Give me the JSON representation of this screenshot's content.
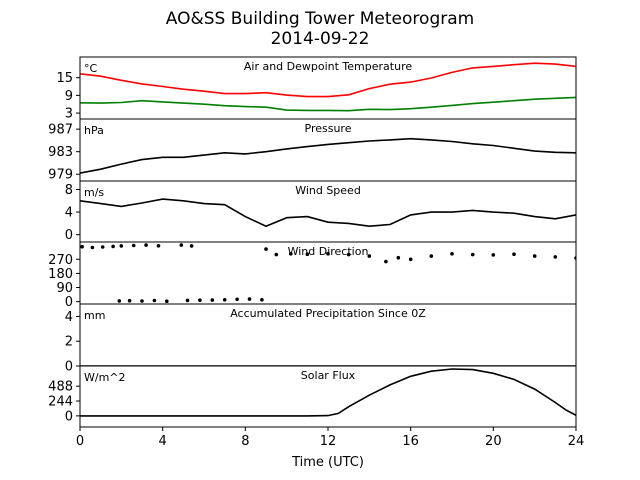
{
  "figure": {
    "title": "AO&SS Building Tower Meteorogram",
    "date": "2014-09-22",
    "xlabel": "Time (UTC)",
    "xticks": [
      0,
      4,
      8,
      12,
      16,
      20,
      24
    ],
    "xlim": [
      0,
      24
    ]
  },
  "colors": {
    "temperature": "#ff0000",
    "dewpoint": "#008000",
    "black": "#000000"
  },
  "chart_data": [
    {
      "type": "line",
      "title": "Air and Dewpoint Temperature",
      "unit_label": "°C",
      "yticks": [
        3,
        9,
        15
      ],
      "ylim": [
        1,
        22
      ],
      "x": [
        0,
        1,
        2,
        3,
        4,
        5,
        6,
        7,
        8,
        9,
        10,
        11,
        12,
        13,
        14,
        15,
        16,
        17,
        18,
        19,
        20,
        21,
        22,
        23,
        24
      ],
      "series": [
        {
          "values": [
            16.3,
            15.5,
            14.1,
            12.9,
            12.0,
            11.1,
            10.4,
            9.6,
            9.6,
            9.9,
            9.1,
            8.6,
            8.6,
            9.2,
            11.3,
            12.8,
            13.5,
            14.9,
            16.8,
            18.3,
            18.8,
            19.4,
            19.9,
            19.6,
            18.8
          ]
        },
        {
          "values": [
            6.5,
            6.4,
            6.6,
            7.2,
            6.8,
            6.4,
            6.0,
            5.5,
            5.2,
            5.0,
            4.0,
            3.9,
            3.9,
            3.8,
            4.3,
            4.2,
            4.5,
            5.0,
            5.6,
            6.2,
            6.7,
            7.2,
            7.7,
            8.0,
            8.3
          ]
        }
      ]
    },
    {
      "type": "line",
      "title": "Pressure",
      "unit_label": "hPa",
      "yticks": [
        979,
        983,
        987
      ],
      "ylim": [
        977.8,
        988.8
      ],
      "x": [
        0,
        1,
        2,
        3,
        4,
        5,
        6,
        7,
        8,
        9,
        10,
        11,
        12,
        13,
        14,
        15,
        16,
        17,
        18,
        19,
        20,
        21,
        22,
        23,
        24
      ],
      "values": [
        979.2,
        979.9,
        980.8,
        981.6,
        982.0,
        982.0,
        982.4,
        982.8,
        982.6,
        983.0,
        983.5,
        983.9,
        984.3,
        984.6,
        984.9,
        985.1,
        985.3,
        985.1,
        984.8,
        984.4,
        984.1,
        983.6,
        983.1,
        982.9,
        982.8
      ]
    },
    {
      "type": "line",
      "title": "Wind Speed",
      "unit_label": "m/s",
      "yticks": [
        0,
        4,
        8
      ],
      "ylim": [
        -1.3,
        9.5
      ],
      "x": [
        0,
        1,
        2,
        3,
        4,
        5,
        6,
        7,
        8,
        9,
        10,
        11,
        12,
        13,
        14,
        15,
        16,
        17,
        18,
        19,
        20,
        21,
        22,
        23,
        24
      ],
      "values": [
        6.0,
        5.5,
        5.0,
        5.6,
        6.3,
        6.0,
        5.5,
        5.3,
        3.2,
        1.5,
        3.0,
        3.2,
        2.2,
        2.0,
        1.5,
        1.8,
        3.5,
        4.0,
        4.0,
        4.3,
        4.0,
        3.8,
        3.2,
        2.8,
        3.5
      ]
    },
    {
      "type": "scatter",
      "title": "Wind Direction",
      "yticks": [
        0,
        90,
        180,
        270
      ],
      "ylim": [
        -15,
        380
      ],
      "points": [
        [
          0.1,
          350
        ],
        [
          0.6,
          345
        ],
        [
          1.1,
          348
        ],
        [
          1.6,
          352
        ],
        [
          2.0,
          355
        ],
        [
          2.6,
          358
        ],
        [
          3.2,
          360
        ],
        [
          3.8,
          356
        ],
        [
          4.9,
          360
        ],
        [
          5.4,
          355
        ],
        [
          1.9,
          5
        ],
        [
          2.4,
          6
        ],
        [
          3.0,
          4
        ],
        [
          3.6,
          7
        ],
        [
          4.2,
          3
        ],
        [
          5.2,
          8
        ],
        [
          5.8,
          9
        ],
        [
          6.4,
          10
        ],
        [
          7.0,
          12
        ],
        [
          7.6,
          15
        ],
        [
          8.2,
          16
        ],
        [
          8.8,
          12
        ],
        [
          9.0,
          335
        ],
        [
          9.5,
          300
        ],
        [
          10.2,
          305
        ],
        [
          11.0,
          302
        ],
        [
          12.0,
          305
        ],
        [
          13.0,
          300
        ],
        [
          14.0,
          290
        ],
        [
          14.8,
          255
        ],
        [
          15.4,
          280
        ],
        [
          16.0,
          270
        ],
        [
          17.0,
          290
        ],
        [
          18.0,
          305
        ],
        [
          19.0,
          300
        ],
        [
          20.0,
          298
        ],
        [
          21.0,
          302
        ],
        [
          22.0,
          290
        ],
        [
          23.0,
          285
        ],
        [
          24.0,
          278
        ]
      ]
    },
    {
      "type": "line",
      "title": "Accumulated Precipitation Since 0Z",
      "unit_label": "mm",
      "yticks": [
        0,
        2,
        4
      ],
      "ylim": [
        0,
        5
      ],
      "x": [
        0,
        24
      ],
      "values": [
        0,
        0
      ]
    },
    {
      "type": "line",
      "title": "Solar Flux",
      "unit_label": "W/m^2",
      "yticks": [
        0,
        244,
        488
      ],
      "ylim": [
        -183,
        820
      ],
      "x": [
        0,
        11,
        12,
        12.5,
        13,
        14,
        15,
        16,
        17,
        18,
        19,
        20,
        21,
        22,
        23,
        23.5,
        24
      ],
      "values": [
        0,
        0,
        5,
        40,
        150,
        340,
        510,
        650,
        735,
        770,
        760,
        700,
        600,
        440,
        220,
        100,
        10
      ]
    }
  ]
}
